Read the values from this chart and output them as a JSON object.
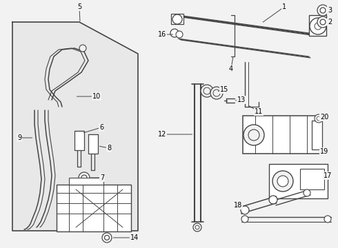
{
  "bg_color": "#f2f2f2",
  "box_bg": "#e8e8e8",
  "line_color": "#444444",
  "text_color": "#000000",
  "white": "#ffffff",
  "fig_w": 4.9,
  "fig_h": 3.6,
  "dpi": 100
}
